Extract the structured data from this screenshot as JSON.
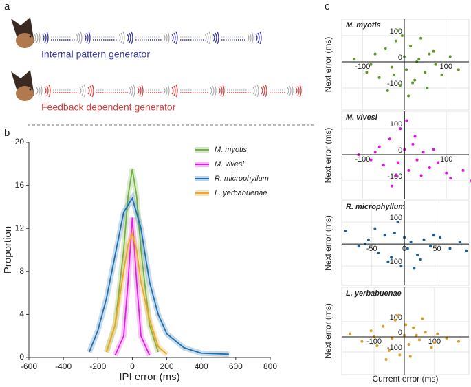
{
  "panel_labels": [
    "a",
    "b",
    "c"
  ],
  "diagram": {
    "rows": [
      {
        "label": "Internal pattern generator",
        "color": "#3a3aaa"
      },
      {
        "label": "Feedback dependent generator",
        "color": "#e03c3c"
      }
    ]
  },
  "chart_data": [
    {
      "type": "line",
      "xlabel": "IPI error (ms)",
      "ylabel": "Proportion",
      "xlim": [
        -600,
        800
      ],
      "xticks": [
        -600,
        -400,
        -200,
        0,
        200,
        400,
        600,
        800
      ],
      "ylim": [
        0,
        20
      ],
      "yticks": [
        0,
        4,
        8,
        12,
        16,
        20
      ],
      "series": [
        {
          "name": "M. myotis",
          "color": "#72b043",
          "x": [
            -150,
            -100,
            -50,
            -25,
            0,
            25,
            50,
            100,
            150
          ],
          "values": [
            0.5,
            3,
            10,
            15,
            17.5,
            15,
            10,
            3,
            0.5
          ]
        },
        {
          "name": "M. vivesi",
          "color": "#e01ee0",
          "x": [
            -100,
            -50,
            -25,
            0,
            25,
            50,
            100
          ],
          "values": [
            0.2,
            2,
            7,
            13,
            7,
            2,
            0.2
          ]
        },
        {
          "name": "R. microphyllum",
          "color": "#1f6fae",
          "x": [
            -250,
            -200,
            -150,
            -100,
            -50,
            0,
            50,
            100,
            150,
            200,
            300,
            400,
            560
          ],
          "values": [
            0.5,
            2.5,
            5.5,
            9.5,
            13.5,
            14.8,
            12,
            7,
            4,
            2.2,
            0.9,
            0.4,
            0.3
          ]
        },
        {
          "name": "L. yerbabuenae",
          "color": "#eaa722",
          "x": [
            -150,
            -100,
            -50,
            -25,
            0,
            25,
            50,
            100,
            150,
            200
          ],
          "values": [
            0.5,
            3,
            8,
            10.5,
            11.5,
            10,
            7,
            3.5,
            1,
            0.3
          ]
        }
      ]
    },
    {
      "type": "scatter",
      "title": "M. myotis",
      "ylabel": "Next error (ms)",
      "color": "#5e962c",
      "xlim": [
        -150,
        155
      ],
      "xticks": [
        -100,
        100
      ],
      "ylim": [
        -184,
        163
      ],
      "yticks": [
        100,
        0,
        -100
      ],
      "x": [
        -120,
        -90,
        -70,
        -60,
        -45,
        -30,
        -20,
        -10,
        0,
        5,
        15,
        25,
        35,
        50,
        60,
        75,
        90,
        110,
        130,
        -40,
        -15,
        10,
        40,
        -80,
        20,
        70,
        -5,
        55,
        -25,
        30
      ],
      "values": [
        10,
        -40,
        30,
        -60,
        50,
        -20,
        80,
        -90,
        20,
        -30,
        60,
        -70,
        10,
        -40,
        30,
        -10,
        -50,
        20,
        -30,
        -110,
        120,
        -130,
        90,
        -10,
        -80,
        40,
        100,
        -100,
        -50,
        0
      ]
    },
    {
      "type": "scatter",
      "title": "M. vivesi",
      "ylabel": "Next error (ms)",
      "color": "#e010e0",
      "xlim": [
        -150,
        154
      ],
      "xticks": [
        -100,
        100
      ],
      "ylim": [
        -171,
        166
      ],
      "yticks": [
        100,
        0,
        -100
      ],
      "x": [
        -110,
        -80,
        -60,
        -50,
        -35,
        -20,
        -10,
        0,
        10,
        20,
        30,
        45,
        60,
        80,
        110,
        140,
        160,
        -30,
        5,
        40,
        -70,
        25,
        -15,
        70,
        100
      ],
      "values": [
        0,
        -20,
        30,
        -40,
        60,
        -80,
        100,
        20,
        -60,
        40,
        -20,
        10,
        -50,
        -30,
        -90,
        -60,
        -100,
        -120,
        130,
        -80,
        10,
        70,
        -30,
        20,
        -70
      ]
    },
    {
      "type": "scatter",
      "title": "R. microphyllum",
      "ylabel": "Next error (ms)",
      "color": "#1a5f9a",
      "xlim": [
        -96,
        99
      ],
      "xticks": [
        -50,
        0,
        50
      ],
      "ylim": [
        -187,
        197
      ],
      "yticks": [
        100,
        -100
      ],
      "x": [
        -90,
        -70,
        -55,
        -40,
        -30,
        -20,
        -10,
        -5,
        0,
        5,
        10,
        20,
        30,
        40,
        55,
        70,
        85,
        95,
        -60,
        -25,
        15,
        45,
        -45,
        25,
        -15
      ],
      "values": [
        60,
        -10,
        20,
        -40,
        40,
        -60,
        100,
        -100,
        30,
        -20,
        10,
        -50,
        20,
        -10,
        30,
        -20,
        10,
        -30,
        0,
        -80,
        -110,
        40,
        70,
        -70,
        50
      ]
    },
    {
      "type": "scatter",
      "title": "L. yerbabuenae",
      "ylabel": "Next error (ms)",
      "xlabel": "Current error (ms)",
      "color": "#d6a023",
      "xlim": [
        -207,
        214
      ],
      "xticks": [
        -100,
        100
      ],
      "ylim": [
        -250,
        327
      ],
      "yticks": [
        100,
        0,
        -100
      ],
      "x": [
        -180,
        -140,
        -110,
        -90,
        -70,
        -50,
        -30,
        -15,
        0,
        15,
        30,
        50,
        70,
        90,
        110,
        140,
        180,
        -60,
        -20,
        20,
        60,
        -100,
        100,
        5,
        -40,
        40
      ],
      "values": [
        20,
        -30,
        40,
        -60,
        70,
        -90,
        110,
        -120,
        10,
        -50,
        60,
        -20,
        30,
        -70,
        20,
        -10,
        -30,
        -150,
        140,
        -130,
        120,
        0,
        -40,
        80,
        -10,
        10
      ]
    }
  ]
}
